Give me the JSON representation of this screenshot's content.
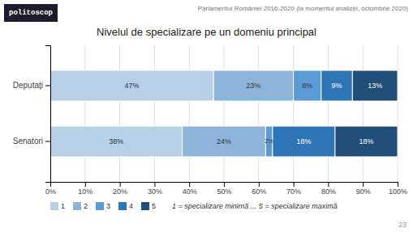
{
  "chart_data": {
    "type": "bar",
    "orientation": "horizontal",
    "stacked": true,
    "title": "Nivelul de specializare pe un domeniu principal",
    "subtitle": "Parlamentul României 2016-2020 (la momentul analizei, octombrie 2020)",
    "annotations": [
      "1 = specializare minimă ... 5 = specializare maximă",
      "23",
      "politoscop"
    ],
    "categories": [
      "Deputați",
      "Senatori"
    ],
    "series": [
      {
        "name": "1",
        "color": "#b8cfe8",
        "values": [
          47,
          38
        ],
        "value_labels": [
          "47%",
          "38%"
        ]
      },
      {
        "name": "2",
        "color": "#8fb4d9",
        "values": [
          23,
          24
        ],
        "value_labels": [
          "23%",
          "24%"
        ]
      },
      {
        "name": "3",
        "color": "#5b9bd5",
        "values": [
          8,
          2
        ],
        "value_labels": [
          "8%",
          "2%"
        ]
      },
      {
        "name": "4",
        "color": "#2e75b6",
        "values": [
          9,
          18
        ],
        "value_labels": [
          "9%",
          "18%"
        ]
      },
      {
        "name": "5",
        "color": "#1f4e79",
        "values": [
          13,
          18
        ],
        "value_labels": [
          "13%",
          "18%"
        ]
      }
    ],
    "xlim": [
      0,
      100
    ],
    "xticks": [
      {
        "value": 0,
        "label": "0%"
      },
      {
        "value": 10,
        "label": "10%"
      },
      {
        "value": 20,
        "label": "20%"
      },
      {
        "value": 30,
        "label": "30%"
      },
      {
        "value": 40,
        "label": "40%"
      },
      {
        "value": 50,
        "label": "50%"
      },
      {
        "value": 60,
        "label": "60%"
      },
      {
        "value": 70,
        "label": "70%"
      },
      {
        "value": 80,
        "label": "80%"
      },
      {
        "value": 90,
        "label": "90%"
      },
      {
        "value": 100,
        "label": "100%"
      }
    ],
    "grid": true,
    "data_labels": true,
    "legend": "bottom"
  }
}
